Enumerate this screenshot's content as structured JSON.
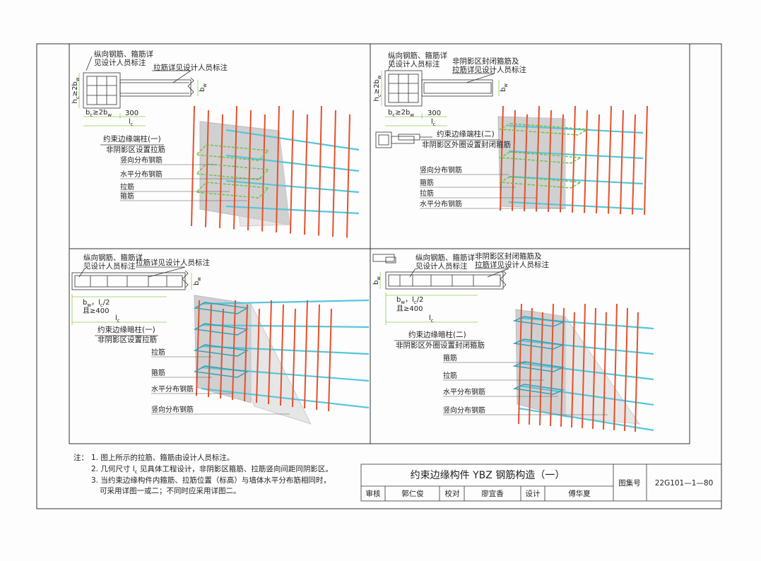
{
  "panels": [
    {
      "callouts": [
        "纵向钢筋、箍筋详",
        "见设计人员标注",
        "拉筋详见设计人员标注"
      ],
      "dims": [
        [
          "h",
          "c",
          "≥2b",
          "w"
        ],
        [
          "b",
          "w"
        ],
        [
          "b",
          "c",
          "≥2b",
          "w"
        ],
        [
          "300"
        ],
        [
          "l",
          "c"
        ]
      ],
      "title": "约束边缘端柱(一)",
      "subtitle": "非阴影区设置拉筋",
      "labels": [
        "竖向分布钢筋",
        "水平分布钢筋",
        "拉筋",
        "箍筋"
      ]
    },
    {
      "callouts": [
        "纵向钢筋、箍筋详",
        "见设计人员标注",
        "非阴影区封闭箍筋及",
        "拉筋详见设计人员标注"
      ],
      "dims": [
        [
          "h",
          "c",
          "≥2b",
          "w"
        ],
        [
          "b",
          "w"
        ],
        [
          "b",
          "c",
          "≥2b",
          "w"
        ],
        [
          "300"
        ],
        [
          "l",
          "c"
        ]
      ],
      "title": "约束边缘端柱(二)",
      "subtitle": "非阴影区外圈设置封闭箍筋",
      "labels": [
        "竖向分布钢筋",
        "箍筋",
        "拉筋",
        "水平分布钢筋"
      ]
    },
    {
      "callouts": [
        "纵向钢筋、箍筋详",
        "见设计人员标注",
        "拉筋详见设计人员标注"
      ],
      "dims": [
        [
          "b",
          "w"
        ],
        [
          "b",
          "w",
          "，l",
          "c",
          "/2"
        ],
        [
          "且≥400"
        ],
        [
          "l",
          "c"
        ]
      ],
      "title": "约束边缘暗柱(一)",
      "subtitle": "非阴影区设置拉筋",
      "labels": [
        "拉筋",
        "箍筋",
        "水平分布钢筋",
        "竖向分布钢筋"
      ]
    },
    {
      "callouts": [
        "纵向钢筋、箍筋详",
        "见设计人员标注",
        "非阴影区封闭箍筋及",
        "拉筋详见设计人员标注"
      ],
      "dims": [
        [
          "b",
          "w"
        ],
        [
          "b",
          "w",
          "，l",
          "c",
          "/2"
        ],
        [
          "且≥400"
        ],
        [
          "l",
          "c"
        ]
      ],
      "title": "约束边缘暗柱(二)",
      "subtitle": "非阴影区外圈设置封闭箍筋",
      "labels": [
        "箍筋",
        "拉筋",
        "水平分布钢筋",
        "竖向分布钢筋"
      ]
    }
  ],
  "notes": {
    "head": "注：",
    "lines": [
      [
        "1. 图上所示的拉筋、箍筋由设计人员标注。"
      ],
      [
        "2. 几何尺寸 l",
        "c",
        " 见具体工程设计，非阴影区箍筋、拉筋竖向间距同阴影区。"
      ],
      [
        "3. 当约束边缘构件内箍筋、拉筋位置（标高）与墙体水平分布筋相同时，"
      ],
      [
        "可采用详图一或二；不同时应采用详图二。"
      ]
    ]
  },
  "title_block": {
    "title": "约束边缘构件 YBZ 钢筋构造（一）",
    "atlas_label": "图集号",
    "atlas_no": "22G101—1—80",
    "review_label": "审核",
    "reviewer": "郭仁俊",
    "check_label": "校对",
    "checker": "廖宜香",
    "design_label": "设计",
    "designer": "傅华夏"
  }
}
